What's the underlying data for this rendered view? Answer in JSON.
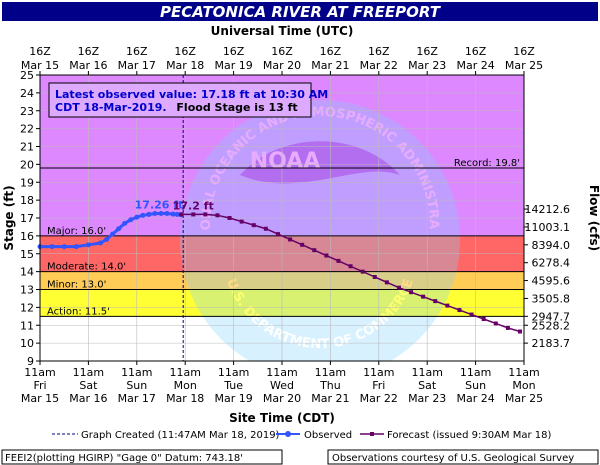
{
  "chart_data": {
    "type": "line",
    "title": "PECATONICA RIVER AT FREEPORT",
    "top_axis_title": "Universal Time (UTC)",
    "bottom_axis_title": "Site Time (CDT)",
    "ylabel_left": "Stage (ft)",
    "ylabel_right": "Flow (cfs)",
    "ylim": [
      9,
      25
    ],
    "y_ticks": [
      9,
      10,
      11,
      12,
      13,
      14,
      15,
      16,
      17,
      18,
      19,
      20,
      21,
      22,
      23,
      24,
      25
    ],
    "x_range_hours_from_first_tick": [
      0,
      240
    ],
    "top_ticks": [
      {
        "line1": "16Z",
        "line2": "Mar 15"
      },
      {
        "line1": "16Z",
        "line2": "Mar 16"
      },
      {
        "line1": "16Z",
        "line2": "Mar 17"
      },
      {
        "line1": "16Z",
        "line2": "Mar 18"
      },
      {
        "line1": "16Z",
        "line2": "Mar 19"
      },
      {
        "line1": "16Z",
        "line2": "Mar 20"
      },
      {
        "line1": "16Z",
        "line2": "Mar 21"
      },
      {
        "line1": "16Z",
        "line2": "Mar 22"
      },
      {
        "line1": "16Z",
        "line2": "Mar 23"
      },
      {
        "line1": "16Z",
        "line2": "Mar 24"
      },
      {
        "line1": "16Z",
        "line2": "Mar 25"
      }
    ],
    "bottom_ticks": [
      {
        "line1": "11am",
        "line2": "Fri",
        "line3": "Mar 15"
      },
      {
        "line1": "11am",
        "line2": "Sat",
        "line3": "Mar 16"
      },
      {
        "line1": "11am",
        "line2": "Sun",
        "line3": "Mar 17"
      },
      {
        "line1": "11am",
        "line2": "Mon",
        "line3": "Mar 18"
      },
      {
        "line1": "11am",
        "line2": "Tue",
        "line3": "Mar 19"
      },
      {
        "line1": "11am",
        "line2": "Wed",
        "line3": "Mar 20"
      },
      {
        "line1": "11am",
        "line2": "Thu",
        "line3": "Mar 21"
      },
      {
        "line1": "11am",
        "line2": "Fri",
        "line3": "Mar 22"
      },
      {
        "line1": "11am",
        "line2": "Sat",
        "line3": "Mar 23"
      },
      {
        "line1": "11am",
        "line2": "Sun",
        "line3": "Mar 24"
      },
      {
        "line1": "11am",
        "line2": "Mon",
        "line3": "Mar 25"
      }
    ],
    "flow_ticks": [
      {
        "stage": 10,
        "label": "2183.7"
      },
      {
        "stage": 11,
        "label": "2528.2"
      },
      {
        "stage": 11.5,
        "label": "2947.7"
      },
      {
        "stage": 12.5,
        "label": "3505.8"
      },
      {
        "stage": 13.5,
        "label": "4595.6"
      },
      {
        "stage": 14.5,
        "label": "6278.4"
      },
      {
        "stage": 15.5,
        "label": "8394.0"
      },
      {
        "stage": 16.5,
        "label": "11003.1"
      },
      {
        "stage": 17.5,
        "label": "14212.6"
      }
    ],
    "bands": [
      {
        "from": 9,
        "to": 11.5,
        "color": "#ffffff"
      },
      {
        "from": 11.5,
        "to": 13,
        "color": "#ffff33"
      },
      {
        "from": 13,
        "to": 14,
        "color": "#ffcc55"
      },
      {
        "from": 14,
        "to": 16,
        "color": "#ff6666"
      },
      {
        "from": 16,
        "to": 25,
        "color": "#dd88ff"
      }
    ],
    "thresholds": [
      {
        "name": "Action",
        "value": 11.5,
        "label": "Action: 11.5'",
        "align": "left"
      },
      {
        "name": "Minor",
        "value": 13,
        "label": "Minor: 13.0'",
        "align": "left"
      },
      {
        "name": "Moderate",
        "value": 14,
        "label": "Moderate: 14.0'",
        "align": "left"
      },
      {
        "name": "Major",
        "value": 16,
        "label": "Major: 16.0'",
        "align": "left"
      },
      {
        "name": "Record",
        "value": 19.8,
        "label": "Record: 19.8'",
        "align": "right"
      }
    ],
    "graph_created_hour": 71,
    "observed": {
      "name": "Observed",
      "color": "#3355ff",
      "x": [
        0,
        6,
        12,
        18,
        24,
        30,
        33,
        36,
        39,
        42,
        45,
        48,
        51,
        54,
        57,
        60,
        63,
        66,
        68,
        70
      ],
      "y": [
        15.4,
        15.4,
        15.4,
        15.4,
        15.5,
        15.6,
        15.8,
        16.1,
        16.4,
        16.7,
        16.9,
        17.05,
        17.15,
        17.2,
        17.25,
        17.25,
        17.25,
        17.22,
        17.2,
        17.18
      ]
    },
    "forecast": {
      "name": "Forecast",
      "color": "#660066",
      "x": [
        70,
        76,
        82,
        88,
        94,
        100,
        106,
        112,
        118,
        124,
        130,
        136,
        142,
        148,
        154,
        160,
        166,
        172,
        178,
        184,
        190,
        196,
        202,
        208,
        214,
        220,
        226,
        232,
        238
      ],
      "y": [
        17.2,
        17.2,
        17.2,
        17.15,
        17.0,
        16.8,
        16.6,
        16.4,
        16.1,
        15.8,
        15.5,
        15.2,
        14.9,
        14.6,
        14.3,
        14.0,
        13.7,
        13.4,
        13.1,
        12.85,
        12.6,
        12.35,
        12.1,
        11.85,
        11.6,
        11.35,
        11.1,
        10.85,
        10.65
      ]
    },
    "observed_label": {
      "text": "17.26 ft",
      "x": 59,
      "y": 17.26
    },
    "forecast_label": {
      "text": "17.2 ft",
      "x": 76,
      "y": 17.2
    },
    "info_box": {
      "line1": "Latest observed value: 17.18 ft at 10:30 AM",
      "line2a": "CDT 18-Mar-2019.",
      "line2b": "Flood Stage is 13 ft"
    },
    "legend": {
      "graph_created": "Graph Created (11:47AM Mar 18, 2019)",
      "observed": "Observed",
      "forecast": "Forecast (issued 9:30AM Mar 18)"
    },
    "footer_left": "FEEI2(plotting HGIRP) \"Gage 0\" Datum: 743.18'",
    "footer_right": "Observations courtesy of U.S. Geological Survey",
    "watermark_text_top": "NATIONAL OCEANIC AND ATMOSPHERIC ADMINISTRATION",
    "watermark_text_bottom": "U.S. DEPARTMENT OF COMMERCE",
    "watermark_center": "NOAA"
  }
}
